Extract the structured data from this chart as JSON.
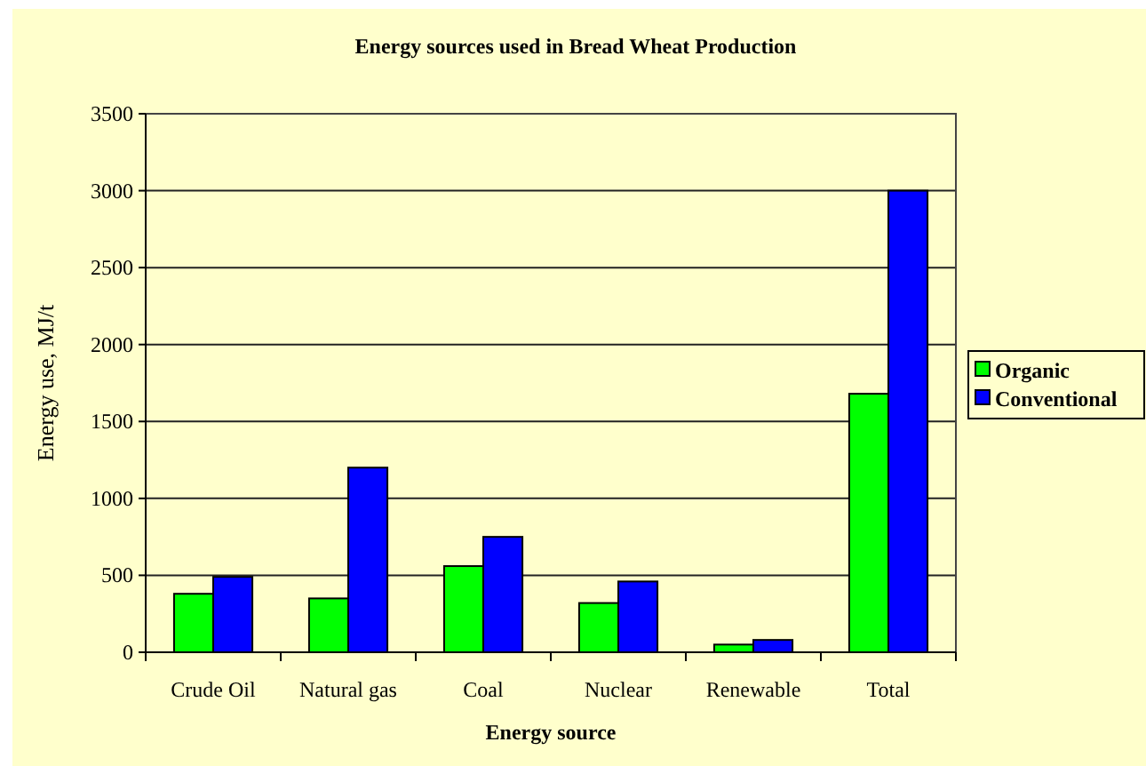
{
  "chart_data": {
    "type": "bar",
    "title": "Energy sources used in Bread Wheat Production",
    "xlabel": "Energy source",
    "ylabel": "Energy use, MJ/t",
    "categories": [
      "Crude Oil",
      "Natural gas",
      "Coal",
      "Nuclear",
      "Renewable",
      "Total"
    ],
    "series": [
      {
        "name": "Organic",
        "color": "#00ff00",
        "values": [
          380,
          350,
          560,
          320,
          50,
          1680
        ]
      },
      {
        "name": "Conventional",
        "color": "#0000ff",
        "values": [
          490,
          1200,
          750,
          460,
          80,
          3000
        ]
      }
    ],
    "ylim": [
      0,
      3500
    ],
    "yticks": [
      0,
      500,
      1000,
      1500,
      2000,
      2500,
      3000,
      3500
    ],
    "grid": "y",
    "legend": "right"
  }
}
